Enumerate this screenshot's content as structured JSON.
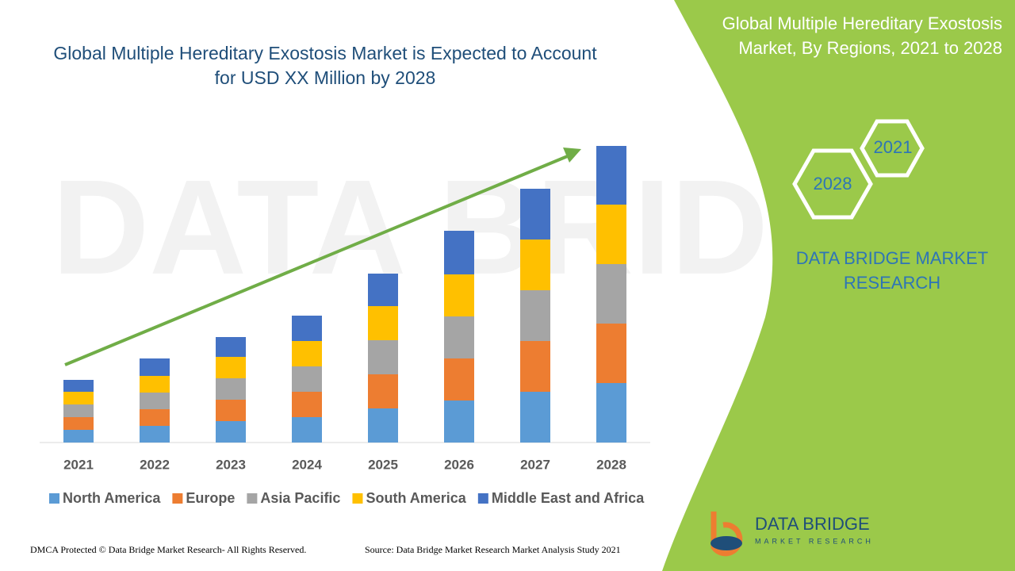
{
  "chart_data": {
    "type": "bar",
    "stacked": true,
    "title": "Global Multiple Hereditary Exostosis Market is Expected to Account for USD XX Million by 2028",
    "categories": [
      "2021",
      "2022",
      "2023",
      "2024",
      "2025",
      "2026",
      "2027",
      "2028"
    ],
    "series": [
      {
        "name": "North America",
        "color": "#5b9bd5",
        "values": [
          16,
          21,
          27,
          32,
          43,
          53,
          64,
          75
        ]
      },
      {
        "name": "Europe",
        "color": "#ed7d31",
        "values": [
          16,
          21,
          27,
          32,
          43,
          53,
          64,
          75
        ]
      },
      {
        "name": "Asia Pacific",
        "color": "#a5a5a5",
        "values": [
          16,
          21,
          27,
          32,
          43,
          53,
          64,
          75
        ]
      },
      {
        "name": "South America",
        "color": "#ffc000",
        "values": [
          16,
          21,
          27,
          32,
          43,
          53,
          64,
          75
        ]
      },
      {
        "name": "Middle East and Africa",
        "color": "#4472c4",
        "values": [
          15,
          22,
          25,
          32,
          41,
          55,
          64,
          74
        ]
      }
    ],
    "ylim": [
      0,
      380
    ]
  },
  "panel": {
    "title": "Global Multiple Hereditary Exostosis Market, By Regions, 2021 to 2028",
    "hex_start": "2021",
    "hex_end": "2028",
    "brand": "DATA BRIDGE MARKET RESEARCH",
    "logo_name": "DATA BRIDGE",
    "logo_sub": "MARKET RESEARCH"
  },
  "footer": {
    "left": "DMCA Protected © Data Bridge Market Research- All Rights Reserved.",
    "right": "Source: Data Bridge Market Research Market Analysis Study 2021"
  }
}
